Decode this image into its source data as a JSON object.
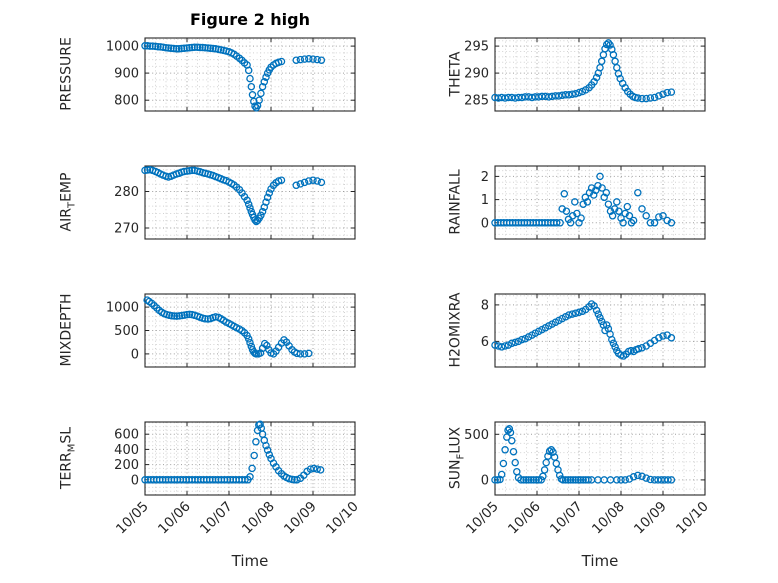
{
  "figure": {
    "title": "Figure 2 high",
    "xlabel": "Time",
    "marker_color": "#0072BD",
    "axis_color": "#262626",
    "grid_color": "#9e9e9e",
    "minor_grid_color": "#d2d2d2"
  },
  "chart_data": [
    {
      "type": "scatter",
      "name": "pressure",
      "ylabel": {
        "pre": "PRESSURE",
        "sub": "",
        "post": ""
      },
      "ylim": [
        760,
        1030
      ],
      "yticks": [
        800,
        900,
        1000
      ],
      "yminor": 25,
      "xlim": [
        0,
        5
      ],
      "xticks": [
        0,
        1,
        2,
        3,
        4,
        5
      ],
      "xticklabels": [
        "10/05",
        "10/06",
        "10/07",
        "10/08",
        "10/09",
        "10/10"
      ],
      "xminor": 0.25,
      "show_xticklabels": false,
      "x": [
        0,
        0.06,
        0.12,
        0.18,
        0.25,
        0.31,
        0.37,
        0.43,
        0.5,
        0.56,
        0.62,
        0.68,
        0.75,
        0.81,
        0.87,
        0.93,
        1,
        1.06,
        1.12,
        1.18,
        1.25,
        1.31,
        1.37,
        1.43,
        1.5,
        1.56,
        1.62,
        1.68,
        1.75,
        1.81,
        1.87,
        1.93,
        2,
        2.06,
        2.12,
        2.18,
        2.25,
        2.31,
        2.37,
        2.43,
        2.47,
        2.5,
        2.53,
        2.56,
        2.59,
        2.62,
        2.65,
        2.68,
        2.72,
        2.76,
        2.8,
        2.84,
        2.88,
        2.92,
        2.96,
        3,
        3.06,
        3.12,
        3.18,
        3.25,
        3.6,
        3.7,
        3.8,
        3.9,
        4,
        4.1,
        4.2
      ],
      "y": [
        1001,
        1001,
        1000,
        1000,
        999,
        998,
        997,
        996,
        994,
        993,
        992,
        991,
        990,
        990,
        991,
        992,
        993,
        994,
        995,
        996,
        996,
        995,
        995,
        994,
        993,
        992,
        991,
        990,
        988,
        986,
        984,
        982,
        979,
        975,
        970,
        963,
        955,
        947,
        938,
        930,
        910,
        880,
        850,
        820,
        795,
        778,
        772,
        780,
        800,
        825,
        850,
        868,
        885,
        900,
        912,
        922,
        930,
        936,
        940,
        943,
        948,
        950,
        952,
        953,
        952,
        950,
        948
      ]
    },
    {
      "type": "scatter",
      "name": "theta",
      "ylabel": {
        "pre": "THETA",
        "sub": "",
        "post": ""
      },
      "ylim": [
        283,
        296.5
      ],
      "yticks": [
        285,
        290,
        295
      ],
      "yminor": 1,
      "xlim": [
        0,
        5
      ],
      "xticks": [
        0,
        1,
        2,
        3,
        4,
        5
      ],
      "xticklabels": [
        "10/05",
        "10/06",
        "10/07",
        "10/08",
        "10/09",
        "10/10"
      ],
      "xminor": 0.25,
      "show_xticklabels": false,
      "x": [
        0,
        0.08,
        0.16,
        0.24,
        0.32,
        0.4,
        0.48,
        0.56,
        0.64,
        0.72,
        0.8,
        0.88,
        0.96,
        1.04,
        1.12,
        1.2,
        1.28,
        1.36,
        1.44,
        1.52,
        1.6,
        1.68,
        1.76,
        1.84,
        1.92,
        2,
        2.08,
        2.16,
        2.24,
        2.3,
        2.36,
        2.42,
        2.46,
        2.5,
        2.54,
        2.58,
        2.62,
        2.66,
        2.7,
        2.74,
        2.78,
        2.82,
        2.86,
        2.9,
        2.94,
        2.98,
        3.04,
        3.1,
        3.16,
        3.22,
        3.28,
        3.34,
        3.4,
        3.5,
        3.6,
        3.7,
        3.8,
        3.9,
        4,
        4.1,
        4.2
      ],
      "y": [
        285.5,
        285.4,
        285.5,
        285.4,
        285.5,
        285.5,
        285.4,
        285.5,
        285.5,
        285.6,
        285.6,
        285.5,
        285.6,
        285.6,
        285.7,
        285.7,
        285.6,
        285.7,
        285.8,
        285.8,
        285.9,
        286,
        286,
        286.1,
        286.2,
        286.4,
        286.6,
        286.9,
        287.3,
        287.8,
        288.4,
        289.2,
        290,
        291,
        292.2,
        293.4,
        294.5,
        295.3,
        295.6,
        295.2,
        294.4,
        293.4,
        292.2,
        291,
        289.9,
        289,
        288.1,
        287.3,
        286.6,
        286.1,
        285.7,
        285.5,
        285.4,
        285.3,
        285.3,
        285.4,
        285.5,
        285.8,
        286.1,
        286.4,
        286.5
      ]
    },
    {
      "type": "scatter",
      "name": "air_temp",
      "ylabel": {
        "pre": "AIR",
        "sub": "T",
        "post": "EMP"
      },
      "ylim": [
        267,
        287
      ],
      "yticks": [
        270,
        280
      ],
      "yminor": 2,
      "xlim": [
        0,
        5
      ],
      "xticks": [
        0,
        1,
        2,
        3,
        4,
        5
      ],
      "xticklabels": [
        "10/05",
        "10/06",
        "10/07",
        "10/08",
        "10/09",
        "10/10"
      ],
      "xminor": 0.25,
      "show_xticklabels": false,
      "x": [
        0,
        0.06,
        0.12,
        0.18,
        0.25,
        0.31,
        0.37,
        0.43,
        0.5,
        0.56,
        0.62,
        0.68,
        0.75,
        0.81,
        0.87,
        0.93,
        1,
        1.06,
        1.12,
        1.18,
        1.25,
        1.31,
        1.37,
        1.43,
        1.5,
        1.56,
        1.62,
        1.68,
        1.75,
        1.81,
        1.87,
        1.93,
        2,
        2.06,
        2.12,
        2.18,
        2.25,
        2.31,
        2.37,
        2.43,
        2.47,
        2.5,
        2.53,
        2.56,
        2.59,
        2.62,
        2.65,
        2.68,
        2.72,
        2.76,
        2.8,
        2.84,
        2.88,
        2.92,
        2.96,
        3,
        3.06,
        3.12,
        3.18,
        3.25,
        3.6,
        3.7,
        3.8,
        3.9,
        4,
        4.1,
        4.2
      ],
      "y": [
        285.8,
        285.9,
        286,
        285.8,
        285.5,
        285.2,
        284.8,
        284.5,
        284.2,
        284,
        284.2,
        284.5,
        284.8,
        285,
        285.3,
        285.5,
        285.6,
        285.7,
        285.8,
        285.8,
        285.6,
        285.4,
        285.2,
        285,
        284.8,
        284.6,
        284.4,
        284.1,
        283.8,
        283.5,
        283.2,
        283,
        282.6,
        282.2,
        281.8,
        281.2,
        280.5,
        279.6,
        278.6,
        277.6,
        276.5,
        275.5,
        274.5,
        273.7,
        272.9,
        272.2,
        271.8,
        272.1,
        272.7,
        273.5,
        274.5,
        275.7,
        277.1,
        278.4,
        279.6,
        280.7,
        281.7,
        282.4,
        282.9,
        283.1,
        281.7,
        282.1,
        282.5,
        282.9,
        283.1,
        282.9,
        282.5
      ]
    },
    {
      "type": "scatter",
      "name": "rainfall",
      "ylabel": {
        "pre": "RAINFALL",
        "sub": "",
        "post": ""
      },
      "ylim": [
        -0.7,
        2.45
      ],
      "yticks": [
        0,
        1,
        2
      ],
      "yminor": 0.25,
      "xlim": [
        0,
        5
      ],
      "xticks": [
        0,
        1,
        2,
        3,
        4,
        5
      ],
      "xticklabels": [
        "10/05",
        "10/06",
        "10/07",
        "10/08",
        "10/09",
        "10/10"
      ],
      "xminor": 0.25,
      "show_xticklabels": false,
      "x": [
        0,
        0.07,
        0.14,
        0.21,
        0.28,
        0.35,
        0.42,
        0.49,
        0.56,
        0.63,
        0.7,
        0.77,
        0.84,
        0.91,
        0.98,
        1.05,
        1.12,
        1.19,
        1.26,
        1.33,
        1.4,
        1.47,
        1.55,
        1.6,
        1.65,
        1.7,
        1.75,
        1.8,
        1.85,
        1.9,
        1.95,
        2,
        2.05,
        2.1,
        2.15,
        2.2,
        2.25,
        2.3,
        2.35,
        2.4,
        2.45,
        2.5,
        2.55,
        2.6,
        2.65,
        2.7,
        2.75,
        2.8,
        2.85,
        2.9,
        2.95,
        3,
        3.05,
        3.1,
        3.15,
        3.2,
        3.25,
        3.3,
        3.4,
        3.5,
        3.6,
        3.7,
        3.8,
        3.9,
        4,
        4.1,
        4.2
      ],
      "y": [
        0,
        0,
        0,
        0,
        0,
        0,
        0,
        0,
        0,
        0,
        0,
        0,
        0,
        0,
        0,
        0,
        0,
        0,
        0,
        0,
        0,
        0,
        0,
        0.6,
        1.25,
        0.5,
        0.15,
        0,
        0.3,
        0.9,
        0.4,
        0,
        0.2,
        0.8,
        1.1,
        0.9,
        1.3,
        1.5,
        1.2,
        1.4,
        1.6,
        2,
        1.5,
        1.1,
        1.3,
        0.8,
        0.5,
        0.3,
        0.6,
        0.9,
        0.5,
        0.2,
        0,
        0.4,
        0.7,
        0.3,
        0,
        0.1,
        1.3,
        0.6,
        0.3,
        0,
        0,
        0.25,
        0.3,
        0.1,
        0
      ]
    },
    {
      "type": "scatter",
      "name": "mixdepth",
      "ylabel": {
        "pre": "MIXDEPTH",
        "sub": "",
        "post": ""
      },
      "ylim": [
        -280,
        1280
      ],
      "yticks": [
        0,
        500,
        1000
      ],
      "yminor": 100,
      "xlim": [
        0,
        5
      ],
      "xticks": [
        0,
        1,
        2,
        3,
        4,
        5
      ],
      "xticklabels": [
        "10/05",
        "10/06",
        "10/07",
        "10/08",
        "10/09",
        "10/10"
      ],
      "xminor": 0.25,
      "show_xticklabels": false,
      "x": [
        0.05,
        0.1,
        0.16,
        0.22,
        0.28,
        0.34,
        0.4,
        0.46,
        0.52,
        0.58,
        0.64,
        0.7,
        0.76,
        0.82,
        0.88,
        0.94,
        1,
        1.06,
        1.12,
        1.18,
        1.25,
        1.31,
        1.37,
        1.43,
        1.5,
        1.56,
        1.62,
        1.68,
        1.75,
        1.81,
        1.87,
        1.93,
        2,
        2.06,
        2.12,
        2.18,
        2.25,
        2.31,
        2.37,
        2.43,
        2.47,
        2.5,
        2.53,
        2.56,
        2.59,
        2.62,
        2.65,
        2.7,
        2.75,
        2.8,
        2.85,
        2.9,
        2.95,
        3,
        3.06,
        3.12,
        3.18,
        3.25,
        3.31,
        3.37,
        3.43,
        3.5,
        3.56,
        3.62,
        3.7,
        3.8,
        3.9
      ],
      "y": [
        1150,
        1120,
        1080,
        1030,
        980,
        930,
        890,
        860,
        840,
        825,
        815,
        810,
        808,
        812,
        820,
        830,
        840,
        845,
        840,
        825,
        805,
        785,
        765,
        750,
        745,
        755,
        775,
        790,
        780,
        750,
        715,
        680,
        650,
        620,
        590,
        560,
        530,
        495,
        450,
        390,
        320,
        240,
        160,
        90,
        40,
        10,
        0,
        0,
        20,
        120,
        220,
        180,
        90,
        20,
        0,
        60,
        140,
        230,
        300,
        250,
        170,
        90,
        40,
        10,
        0,
        0,
        10
      ]
    },
    {
      "type": "scatter",
      "name": "h2omixra",
      "ylabel": {
        "pre": "H2OMIXRA",
        "sub": "",
        "post": ""
      },
      "ylim": [
        4.6,
        8.6
      ],
      "yticks": [
        6,
        8
      ],
      "yminor": 0.5,
      "xlim": [
        0,
        5
      ],
      "xticks": [
        0,
        1,
        2,
        3,
        4,
        5
      ],
      "xticklabels": [
        "10/05",
        "10/06",
        "10/07",
        "10/08",
        "10/09",
        "10/10"
      ],
      "xminor": 0.25,
      "show_xticklabels": false,
      "x": [
        0,
        0.08,
        0.16,
        0.24,
        0.32,
        0.4,
        0.48,
        0.56,
        0.64,
        0.72,
        0.8,
        0.88,
        0.96,
        1.04,
        1.12,
        1.2,
        1.28,
        1.36,
        1.44,
        1.52,
        1.6,
        1.68,
        1.76,
        1.84,
        1.92,
        2,
        2.08,
        2.16,
        2.24,
        2.3,
        2.36,
        2.42,
        2.46,
        2.5,
        2.54,
        2.58,
        2.62,
        2.66,
        2.7,
        2.74,
        2.78,
        2.82,
        2.86,
        2.9,
        2.94,
        3,
        3.06,
        3.12,
        3.18,
        3.24,
        3.3,
        3.36,
        3.42,
        3.5,
        3.6,
        3.7,
        3.8,
        3.9,
        4,
        4.1,
        4.2
      ],
      "y": [
        5.8,
        5.75,
        5.7,
        5.75,
        5.8,
        5.9,
        5.95,
        6,
        6.1,
        6.15,
        6.25,
        6.35,
        6.45,
        6.55,
        6.65,
        6.75,
        6.85,
        6.95,
        7.05,
        7.15,
        7.25,
        7.35,
        7.45,
        7.5,
        7.55,
        7.6,
        7.65,
        7.75,
        7.9,
        8.05,
        7.95,
        7.7,
        7.5,
        7.3,
        7.1,
        6.9,
        6.6,
        6.9,
        6.7,
        6.4,
        6.1,
        5.9,
        5.7,
        5.5,
        5.35,
        5.25,
        5.2,
        5.3,
        5.45,
        5.5,
        5.45,
        5.55,
        5.6,
        5.65,
        5.75,
        5.9,
        6.05,
        6.2,
        6.3,
        6.35,
        6.2
      ]
    },
    {
      "type": "scatter",
      "name": "terr_msl",
      "ylabel": {
        "pre": "TERR",
        "sub": "M",
        "post": "SL"
      },
      "ylim": [
        -200,
        760
      ],
      "yticks": [
        0,
        200,
        400,
        600
      ],
      "yminor": 50,
      "xlim": [
        0,
        5
      ],
      "xticks": [
        0,
        1,
        2,
        3,
        4,
        5
      ],
      "xticklabels": [
        "10/05",
        "10/06",
        "10/07",
        "10/08",
        "10/09",
        "10/10"
      ],
      "xminor": 0.25,
      "show_xticklabels": true,
      "x": [
        0,
        0.07,
        0.14,
        0.21,
        0.28,
        0.35,
        0.42,
        0.49,
        0.56,
        0.63,
        0.7,
        0.77,
        0.84,
        0.91,
        0.98,
        1.05,
        1.12,
        1.19,
        1.26,
        1.33,
        1.4,
        1.47,
        1.54,
        1.61,
        1.68,
        1.75,
        1.82,
        1.89,
        1.96,
        2.03,
        2.1,
        2.17,
        2.24,
        2.31,
        2.38,
        2.45,
        2.5,
        2.55,
        2.6,
        2.64,
        2.68,
        2.71,
        2.74,
        2.77,
        2.8,
        2.84,
        2.88,
        2.92,
        2.96,
        3,
        3.06,
        3.12,
        3.18,
        3.25,
        3.31,
        3.37,
        3.43,
        3.5,
        3.56,
        3.62,
        3.7,
        3.78,
        3.86,
        3.94,
        4.02,
        4.1,
        4.18
      ],
      "y": [
        0,
        0,
        0,
        0,
        0,
        0,
        0,
        0,
        0,
        0,
        0,
        0,
        0,
        0,
        0,
        0,
        0,
        0,
        0,
        0,
        0,
        0,
        0,
        0,
        0,
        0,
        0,
        0,
        0,
        0,
        0,
        0,
        0,
        0,
        0,
        0,
        40,
        150,
        320,
        500,
        650,
        720,
        730,
        680,
        600,
        520,
        450,
        390,
        330,
        280,
        220,
        170,
        120,
        80,
        50,
        30,
        15,
        5,
        0,
        0,
        20,
        60,
        110,
        140,
        150,
        140,
        130
      ]
    },
    {
      "type": "scatter",
      "name": "sun_flux",
      "ylabel": {
        "pre": "SUN",
        "sub": "F",
        "post": "LUX"
      },
      "ylim": [
        -165,
        635
      ],
      "yticks": [
        0,
        500
      ],
      "yminor": 100,
      "xlim": [
        0,
        5
      ],
      "xticks": [
        0,
        1,
        2,
        3,
        4,
        5
      ],
      "xticklabels": [
        "10/05",
        "10/06",
        "10/07",
        "10/08",
        "10/09",
        "10/10"
      ],
      "xminor": 0.25,
      "show_xticklabels": true,
      "x": [
        0,
        0.06,
        0.12,
        0.16,
        0.2,
        0.24,
        0.28,
        0.31,
        0.34,
        0.37,
        0.4,
        0.44,
        0.48,
        0.52,
        0.56,
        0.62,
        0.68,
        0.74,
        0.8,
        0.86,
        0.92,
        0.98,
        1.04,
        1.1,
        1.14,
        1.18,
        1.22,
        1.26,
        1.3,
        1.34,
        1.38,
        1.42,
        1.46,
        1.5,
        1.54,
        1.58,
        1.62,
        1.68,
        1.74,
        1.8,
        1.86,
        1.92,
        1.98,
        2.04,
        2.1,
        2.16,
        2.22,
        2.3,
        2.45,
        2.6,
        2.75,
        2.9,
        3,
        3.1,
        3.2,
        3.3,
        3.4,
        3.5,
        3.6,
        3.7,
        3.8,
        3.88,
        3.96,
        4.04,
        4.12,
        4.2
      ],
      "y": [
        0,
        0,
        5,
        60,
        180,
        330,
        470,
        545,
        560,
        520,
        430,
        310,
        190,
        90,
        25,
        0,
        0,
        0,
        0,
        0,
        0,
        0,
        0,
        0,
        40,
        110,
        190,
        260,
        315,
        330,
        305,
        250,
        180,
        110,
        50,
        10,
        0,
        0,
        0,
        0,
        0,
        0,
        0,
        0,
        0,
        0,
        0,
        0,
        0,
        0,
        0,
        0,
        0,
        0,
        10,
        35,
        50,
        40,
        20,
        5,
        0,
        0,
        0,
        0,
        0,
        0
      ]
    }
  ]
}
